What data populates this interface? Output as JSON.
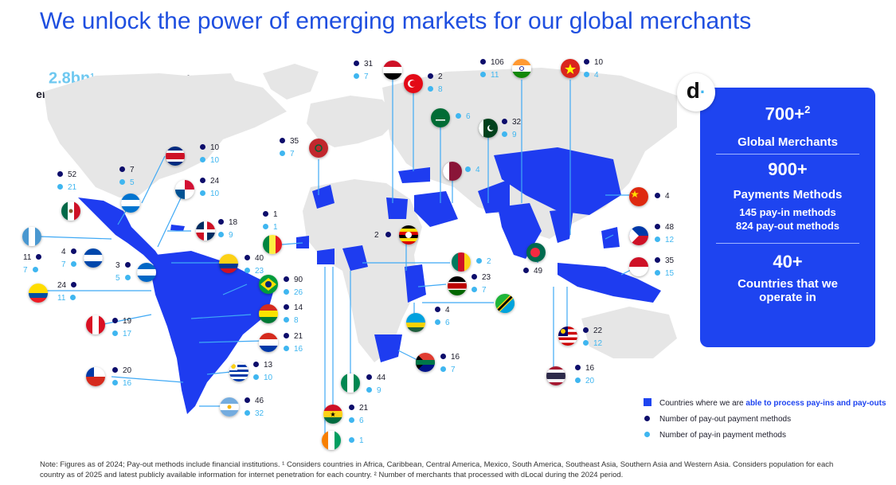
{
  "title": "We unlock the power of emerging markets for our global merchants",
  "headline": {
    "value": "2.8bn",
    "sup": "1",
    "text": "customers unlocked by enabling access to emerging markets"
  },
  "panel": {
    "logo": "d",
    "merchants_value": "700+",
    "merchants_sup": "2",
    "merchants_label": "Global Merchants",
    "payments_value": "900+",
    "payments_label": "Payments Methods",
    "payin_value": "145",
    "payin_label": "pay-in methods",
    "payout_value": "824",
    "payout_label": "pay-out methods",
    "countries_value": "40+",
    "countries_label": "Countries that we operate in"
  },
  "countries": [
    {
      "name": "Costa Rica",
      "payout": "10",
      "payin": "10"
    },
    {
      "name": "Guatemala",
      "payout": "7",
      "payin": "5"
    },
    {
      "name": "Mexico",
      "payout": "52",
      "payin": "21"
    },
    {
      "name": "Panama",
      "payout": "24",
      "payin": "10"
    },
    {
      "name": "Honduras",
      "payout": "",
      "payin": ""
    },
    {
      "name": "Dominican Republic",
      "payout": "18",
      "payin": "9"
    },
    {
      "name": "Guatemala 2",
      "payout": "11",
      "payin": "7"
    },
    {
      "name": "El Salvador",
      "payout": "4",
      "payin": "7"
    },
    {
      "name": "Nicaragua",
      "payout": "3",
      "payin": "5"
    },
    {
      "name": "Ecuador",
      "payout": "24",
      "payin": "11"
    },
    {
      "name": "Peru",
      "payout": "19",
      "payin": "17"
    },
    {
      "name": "Chile",
      "payout": "20",
      "payin": "16"
    },
    {
      "name": "Colombia",
      "payout": "40",
      "payin": "23"
    },
    {
      "name": "Brazil",
      "payout": "90",
      "payin": "26"
    },
    {
      "name": "Bolivia",
      "payout": "14",
      "payin": "8"
    },
    {
      "name": "Paraguay",
      "payout": "21",
      "payin": "16"
    },
    {
      "name": "Uruguay",
      "payout": "13",
      "payin": "10"
    },
    {
      "name": "Argentina",
      "payout": "46",
      "payin": "32"
    },
    {
      "name": "Morocco",
      "payout": "35",
      "payin": "7"
    },
    {
      "name": "Senegal",
      "payout": "1",
      "payin": "1"
    },
    {
      "name": "Egypt",
      "payout": "31",
      "payin": "7"
    },
    {
      "name": "Turkey",
      "payout": "2",
      "payin": "8"
    },
    {
      "name": "Saudi Arabia",
      "payout": "",
      "payin": "6"
    },
    {
      "name": "Qatar",
      "payout": "",
      "payin": "4"
    },
    {
      "name": "Pakistan",
      "payout": "32",
      "payin": "9"
    },
    {
      "name": "India",
      "payout": "106",
      "payin": "11"
    },
    {
      "name": "Vietnam",
      "payout": "10",
      "payin": "4"
    },
    {
      "name": "China",
      "payout": "4",
      "payin": ""
    },
    {
      "name": "Philippines",
      "payout": "48",
      "payin": "12"
    },
    {
      "name": "Indonesia",
      "payout": "35",
      "payin": "15"
    },
    {
      "name": "Bangladesh",
      "payout": "49",
      "payin": ""
    },
    {
      "name": "Uganda",
      "payout": "2",
      "payin": ""
    },
    {
      "name": "Cameroon",
      "payout": "",
      "payin": "2"
    },
    {
      "name": "Kenya",
      "payout": "23",
      "payin": "7"
    },
    {
      "name": "Tanzania",
      "payout": "",
      "payin": ""
    },
    {
      "name": "Rwanda",
      "payout": "4",
      "payin": "6"
    },
    {
      "name": "Malaysia",
      "payout": "22",
      "payin": "12"
    },
    {
      "name": "Thailand",
      "payout": "16",
      "payin": "20"
    },
    {
      "name": "South Africa",
      "payout": "16",
      "payin": "7"
    },
    {
      "name": "Nigeria",
      "payout": "44",
      "payin": "9"
    },
    {
      "name": "Ghana",
      "payout": "21",
      "payin": "6"
    },
    {
      "name": "Ivory Coast",
      "payout": "",
      "payin": "1"
    }
  ],
  "legend": {
    "countries_prefix": "Countries where we are ",
    "countries_highlight": "able to process pay-ins and pay-outs",
    "payout": "Number of pay-out payment methods",
    "payin": "Number of pay-in payment methods"
  },
  "note": "Note: Figures as of 2024; Pay-out methods include financial institutions. ¹ Considers countries in Africa, Caribbean, Central America, Mexico, South America, Southeast Asia, Southern Asia and Western Asia. Considers population for each country as of 2025 and latest publicly available information for internet penetration for each country. ² Number of merchants that processed with dLocal during the 2024 period.",
  "colors": {
    "accent": "#1e44f0",
    "payout_dot": "#0d0d6b",
    "payin_dot": "#3fb6f0"
  }
}
